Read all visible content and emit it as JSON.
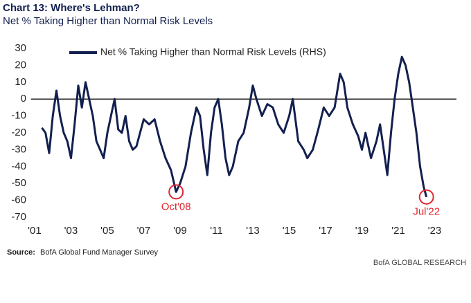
{
  "chart_data": {
    "type": "line",
    "title": "Chart 13: Where's Lehman?",
    "subtitle": "Net % Taking Higher than Normal Risk Levels",
    "legend_position": "top-left",
    "series": [
      {
        "name": "Net % Taking Higher than Normal Risk Levels (RHS)",
        "color": "#13204f",
        "x": [
          2001.4,
          2001.6,
          2001.8,
          2002.0,
          2002.2,
          2002.4,
          2002.6,
          2002.8,
          2003.0,
          2003.2,
          2003.4,
          2003.6,
          2003.8,
          2004.0,
          2004.2,
          2004.4,
          2004.6,
          2004.8,
          2005.0,
          2005.2,
          2005.4,
          2005.6,
          2005.8,
          2006.0,
          2006.2,
          2006.4,
          2006.6,
          2006.8,
          2007.0,
          2007.3,
          2007.6,
          2007.9,
          2008.2,
          2008.5,
          2008.78,
          2009.0,
          2009.3,
          2009.6,
          2009.9,
          2010.1,
          2010.3,
          2010.5,
          2010.7,
          2010.9,
          2011.1,
          2011.3,
          2011.5,
          2011.7,
          2011.9,
          2012.2,
          2012.5,
          2012.8,
          2013.0,
          2013.2,
          2013.5,
          2013.8,
          2014.1,
          2014.4,
          2014.7,
          2015.0,
          2015.2,
          2015.5,
          2015.8,
          2016.0,
          2016.3,
          2016.6,
          2016.9,
          2017.2,
          2017.5,
          2017.8,
          2018.0,
          2018.2,
          2018.5,
          2018.8,
          2019.0,
          2019.2,
          2019.5,
          2019.8,
          2020.0,
          2020.2,
          2020.4,
          2020.6,
          2020.8,
          2021.0,
          2021.2,
          2021.4,
          2021.6,
          2021.8,
          2022.0,
          2022.2,
          2022.4,
          2022.55
        ],
        "values": [
          -17,
          -20,
          -32,
          -10,
          5,
          -10,
          -20,
          -25,
          -35,
          -15,
          8,
          -5,
          10,
          0,
          -10,
          -25,
          -30,
          -35,
          -20,
          -10,
          0,
          -18,
          -20,
          -10,
          -25,
          -30,
          -28,
          -20,
          -12,
          -15,
          -12,
          -25,
          -35,
          -42,
          -55,
          -50,
          -40,
          -20,
          -5,
          -10,
          -30,
          -45,
          -20,
          -5,
          0,
          -15,
          -35,
          -45,
          -40,
          -25,
          -20,
          -5,
          8,
          0,
          -10,
          -3,
          -5,
          -15,
          -20,
          -10,
          0,
          -25,
          -30,
          -35,
          -30,
          -18,
          -5,
          -10,
          -5,
          15,
          10,
          -5,
          -15,
          -22,
          -30,
          -20,
          -35,
          -25,
          -15,
          -30,
          -45,
          -20,
          0,
          15,
          25,
          20,
          10,
          -5,
          -20,
          -40,
          -52,
          -58
        ]
      }
    ],
    "annotations": [
      {
        "text": "Oct'08",
        "x": 2008.78
      },
      {
        "text": "Jul'22",
        "x": 2022.55
      }
    ],
    "annotation_color": "#e0262c",
    "xlim": [
      2000.8,
      2024.2
    ],
    "xticks": [
      {
        "value": 2001,
        "label": "'01"
      },
      {
        "value": 2003,
        "label": "'03"
      },
      {
        "value": 2005,
        "label": "'05"
      },
      {
        "value": 2007,
        "label": "'07"
      },
      {
        "value": 2009,
        "label": "'09"
      },
      {
        "value": 2011,
        "label": "'11"
      },
      {
        "value": 2013,
        "label": "'13"
      },
      {
        "value": 2015,
        "label": "'15"
      },
      {
        "value": 2017,
        "label": "'17"
      },
      {
        "value": 2019,
        "label": "'19"
      },
      {
        "value": 2021,
        "label": "'21"
      },
      {
        "value": 2023,
        "label": "'23"
      }
    ],
    "ylim": [
      -70,
      30
    ],
    "yticks": [
      30,
      20,
      10,
      0,
      -10,
      -20,
      -30,
      -40,
      -50,
      -60,
      -70
    ],
    "source_label": "Source:",
    "source": "BofA Global Fund Manager Survey",
    "brand": "BofA GLOBAL RESEARCH"
  }
}
